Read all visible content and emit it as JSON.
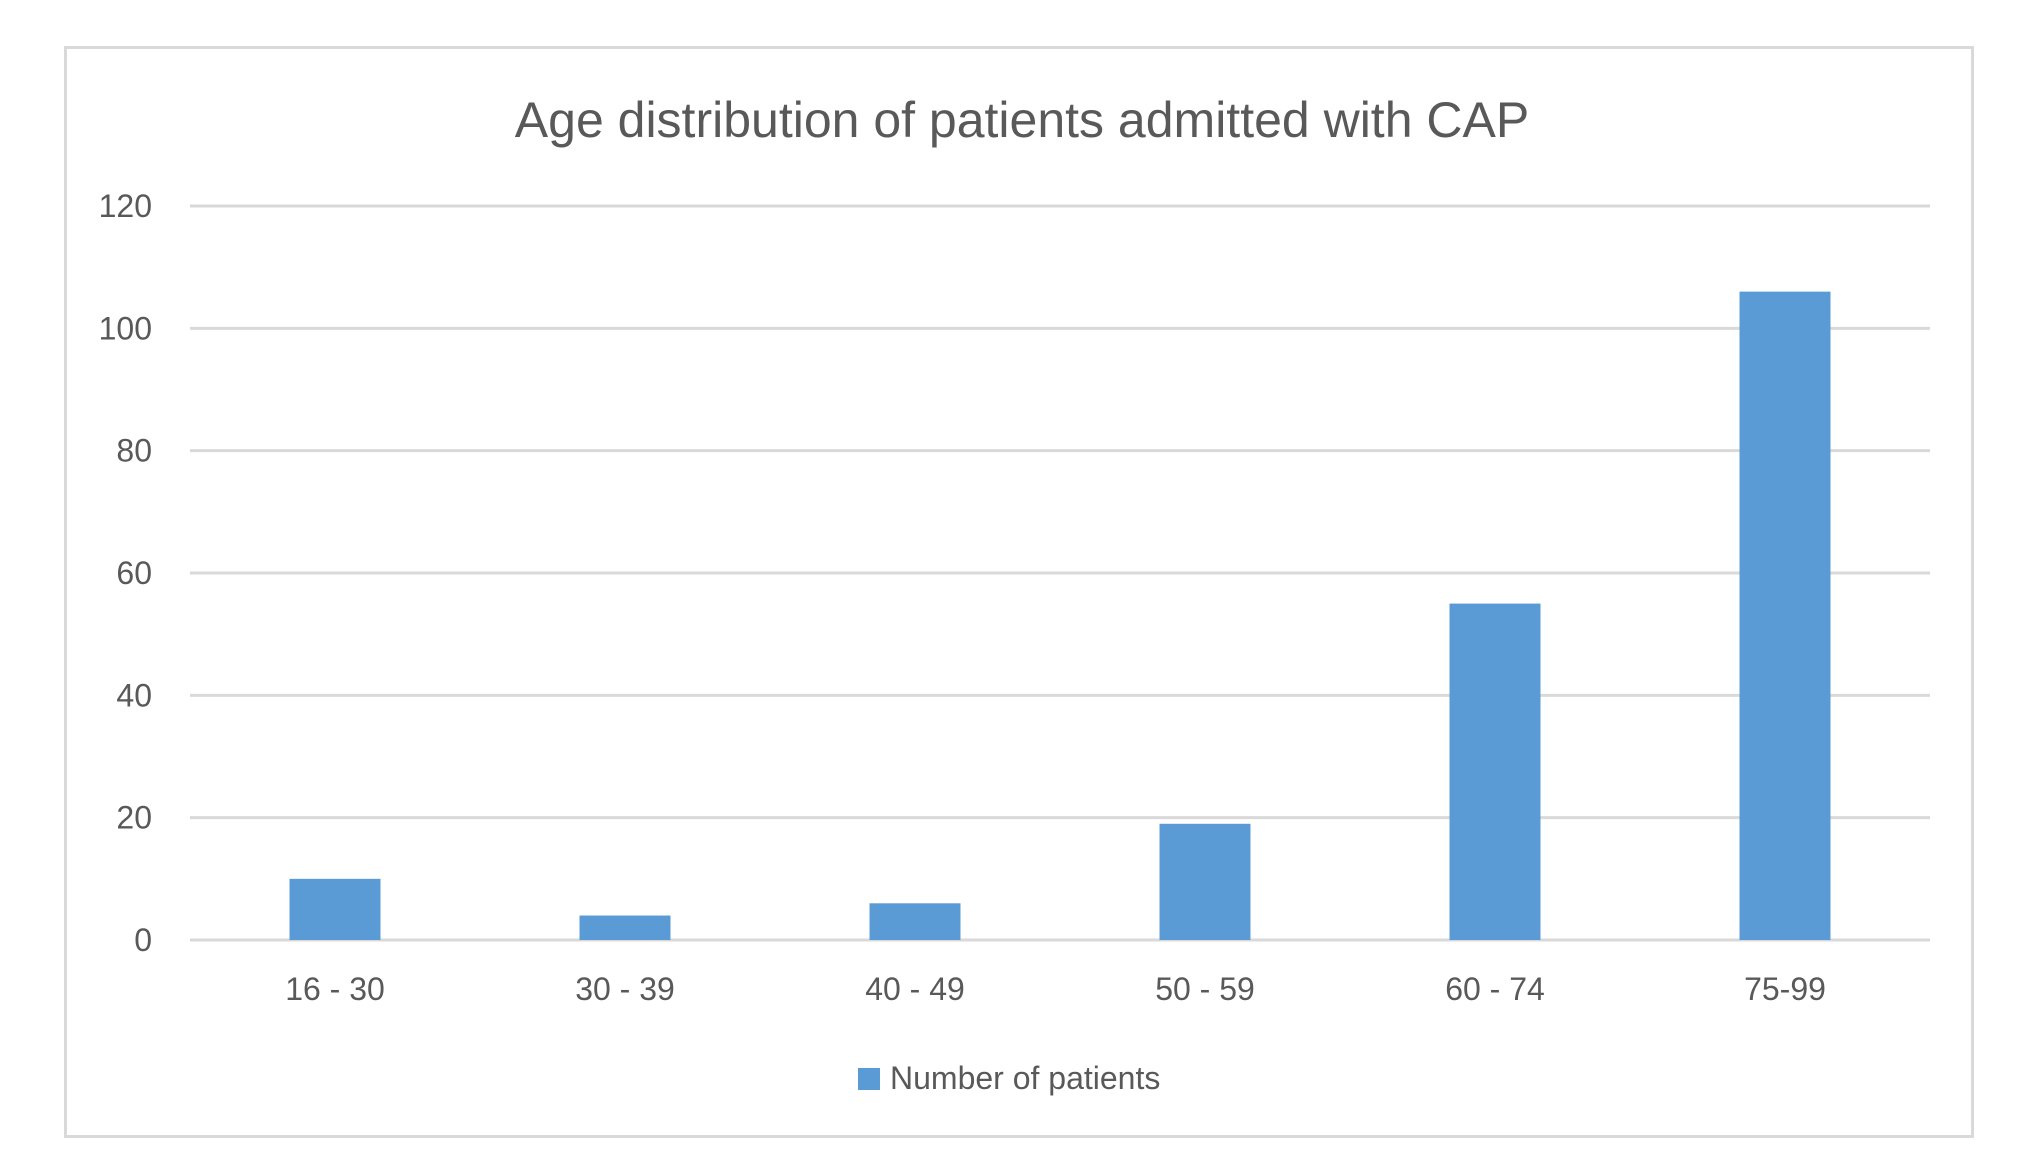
{
  "chart_data": {
    "type": "bar",
    "title": "Age distribution of patients admitted with CAP",
    "categories": [
      "16 - 30",
      "30 - 39",
      "40 - 49",
      "50 - 59",
      "60 - 74",
      "75-99"
    ],
    "series": [
      {
        "name": "Number of patients",
        "values": [
          10,
          4,
          6,
          19,
          55,
          106
        ],
        "color": "#5b9bd5"
      }
    ],
    "xlabel": "",
    "ylabel": "",
    "ylim": [
      0,
      120
    ],
    "yticks": [
      "0",
      "20",
      "40",
      "60",
      "80",
      "100",
      "120"
    ],
    "grid": true,
    "legend_position": "bottom",
    "colors": {
      "gridline": "#d9d9d9",
      "text": "#595959",
      "frame": "#d9d9d9"
    }
  }
}
